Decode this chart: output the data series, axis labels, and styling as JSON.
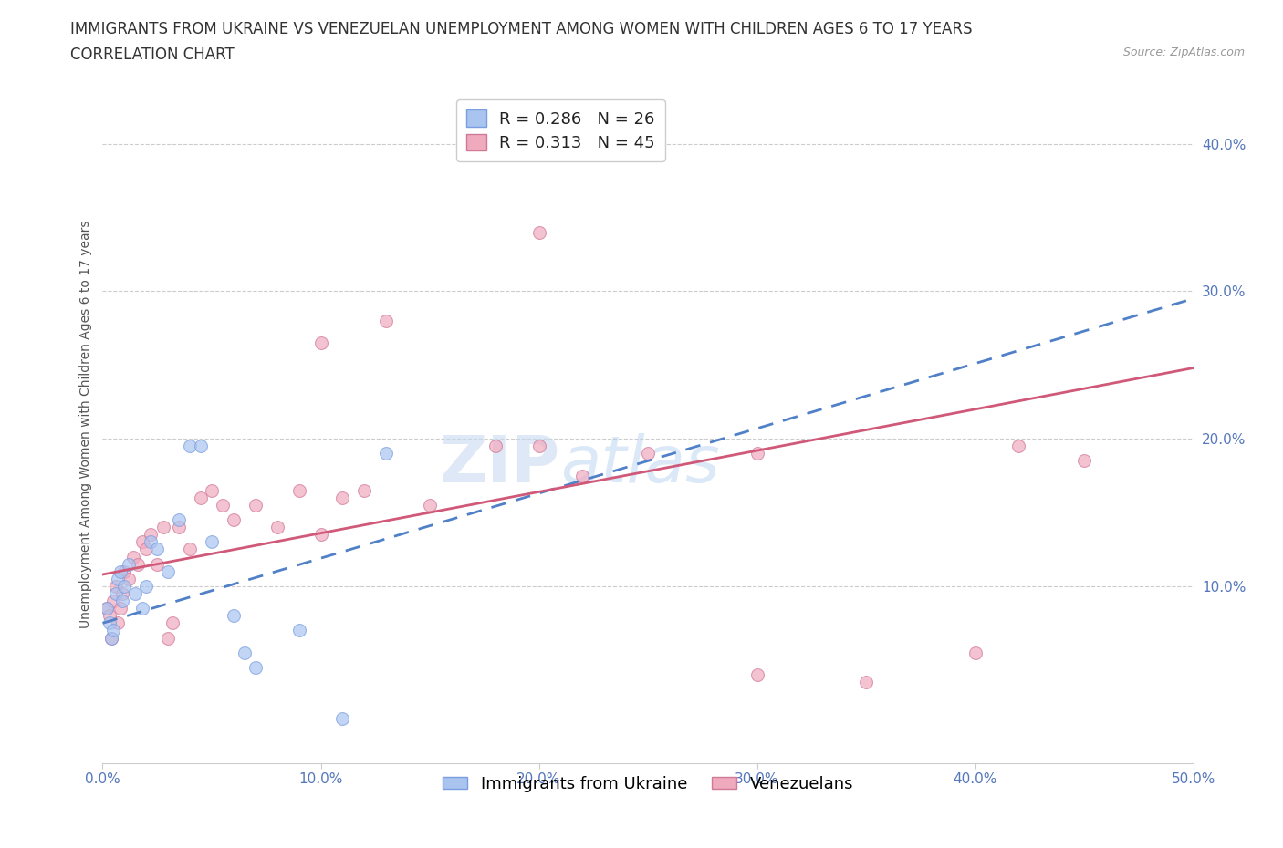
{
  "title_line1": "IMMIGRANTS FROM UKRAINE VS VENEZUELAN UNEMPLOYMENT AMONG WOMEN WITH CHILDREN AGES 6 TO 17 YEARS",
  "title_line2": "CORRELATION CHART",
  "source_text": "Source: ZipAtlas.com",
  "ylabel": "Unemployment Among Women with Children Ages 6 to 17 years",
  "xlim": [
    0.0,
    0.5
  ],
  "ylim": [
    -0.02,
    0.44
  ],
  "ytick_positions": [
    0.1,
    0.2,
    0.3,
    0.4
  ],
  "ytick_labels": [
    "10.0%",
    "20.0%",
    "30.0%",
    "40.0%"
  ],
  "xticks": [
    0.0,
    0.1,
    0.2,
    0.3,
    0.4,
    0.5
  ],
  "xtick_labels": [
    "0.0%",
    "10.0%",
    "20.0%",
    "30.0%",
    "40.0%",
    "50.0%"
  ],
  "ukraine_color": "#aac4f0",
  "ukraine_edge_color": "#7a9ee0",
  "venezuela_color": "#f0aabe",
  "venezuela_edge_color": "#d07898",
  "ukraine_line_color": "#5080c8",
  "venezuela_line_color": "#d05878",
  "ukraine_R": 0.286,
  "ukraine_N": 26,
  "venezuela_R": 0.313,
  "venezuela_N": 45,
  "ukraine_scatter_x": [
    0.002,
    0.003,
    0.004,
    0.005,
    0.006,
    0.007,
    0.008,
    0.009,
    0.01,
    0.012,
    0.015,
    0.018,
    0.02,
    0.022,
    0.025,
    0.03,
    0.035,
    0.04,
    0.045,
    0.05,
    0.06,
    0.065,
    0.07,
    0.09,
    0.11,
    0.13
  ],
  "ukraine_scatter_y": [
    0.085,
    0.075,
    0.065,
    0.07,
    0.095,
    0.105,
    0.11,
    0.09,
    0.1,
    0.115,
    0.095,
    0.085,
    0.1,
    0.13,
    0.125,
    0.11,
    0.145,
    0.195,
    0.195,
    0.13,
    0.08,
    0.055,
    0.045,
    0.07,
    0.01,
    0.19
  ],
  "venezuela_scatter_x": [
    0.002,
    0.003,
    0.004,
    0.005,
    0.006,
    0.007,
    0.008,
    0.009,
    0.01,
    0.012,
    0.014,
    0.016,
    0.018,
    0.02,
    0.022,
    0.025,
    0.028,
    0.03,
    0.032,
    0.035,
    0.04,
    0.045,
    0.05,
    0.055,
    0.06,
    0.07,
    0.08,
    0.09,
    0.1,
    0.11,
    0.12,
    0.15,
    0.18,
    0.2,
    0.22,
    0.25,
    0.3,
    0.35,
    0.4,
    0.42,
    0.45,
    0.2,
    0.3,
    0.1,
    0.13
  ],
  "venezuela_scatter_y": [
    0.085,
    0.08,
    0.065,
    0.09,
    0.1,
    0.075,
    0.085,
    0.095,
    0.11,
    0.105,
    0.12,
    0.115,
    0.13,
    0.125,
    0.135,
    0.115,
    0.14,
    0.065,
    0.075,
    0.14,
    0.125,
    0.16,
    0.165,
    0.155,
    0.145,
    0.155,
    0.14,
    0.165,
    0.135,
    0.16,
    0.165,
    0.155,
    0.195,
    0.195,
    0.175,
    0.19,
    0.04,
    0.035,
    0.055,
    0.195,
    0.185,
    0.34,
    0.19,
    0.265,
    0.28
  ],
  "watermark_text_1": "ZIP",
  "watermark_text_2": "atlas",
  "background_color": "#ffffff",
  "grid_color": "#cccccc",
  "title_fontsize": 12,
  "axis_label_fontsize": 10,
  "tick_fontsize": 11,
  "legend_fontsize": 13,
  "marker_size": 100
}
